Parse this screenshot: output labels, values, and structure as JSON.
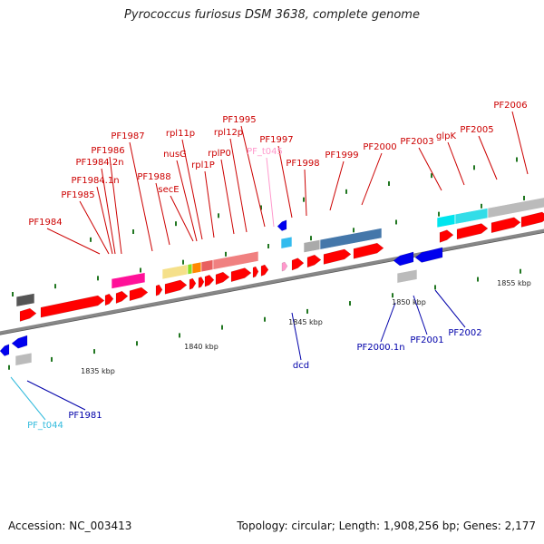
{
  "title": "Pyrococcus furiosus DSM 3638, complete genome",
  "footer": {
    "accession": "Accession: NC_003413",
    "summary": "Topology: circular; Length: 1,908,256 bp; Genes: 2,177"
  },
  "colors": {
    "plus_label": "#cc0000",
    "minus_label": "#0000aa",
    "trna_plus_label": "#ff99cc",
    "trna_minus_label": "#33bbdd",
    "plus_gene": "#ff0000",
    "minus_gene": "#0000ee",
    "backbone": "#888888",
    "tick": "#227722"
  },
  "scale_labels": [
    "1835 kbp",
    "1840 kbp",
    "1845 kbp",
    "1850 kbp",
    "1855 kbp"
  ],
  "plus_labels": [
    "PF1984",
    "PF1985",
    "PF1984.1n",
    "PF1984.2n",
    "PF1986",
    "PF1987",
    "PF1988",
    "secE",
    "nusG",
    "rpl11p",
    "rpl1P",
    "rplP0",
    "rpl12p",
    "PF_t045",
    "PF1995",
    "PF1997",
    "PF1998",
    "PF1999",
    "PF2000",
    "PF2003",
    "glpK",
    "PF2005",
    "PF2006"
  ],
  "minus_labels": [
    "PF_t044",
    "PF1981",
    "dcd",
    "PF2000.1n",
    "PF2001",
    "PF2002"
  ]
}
